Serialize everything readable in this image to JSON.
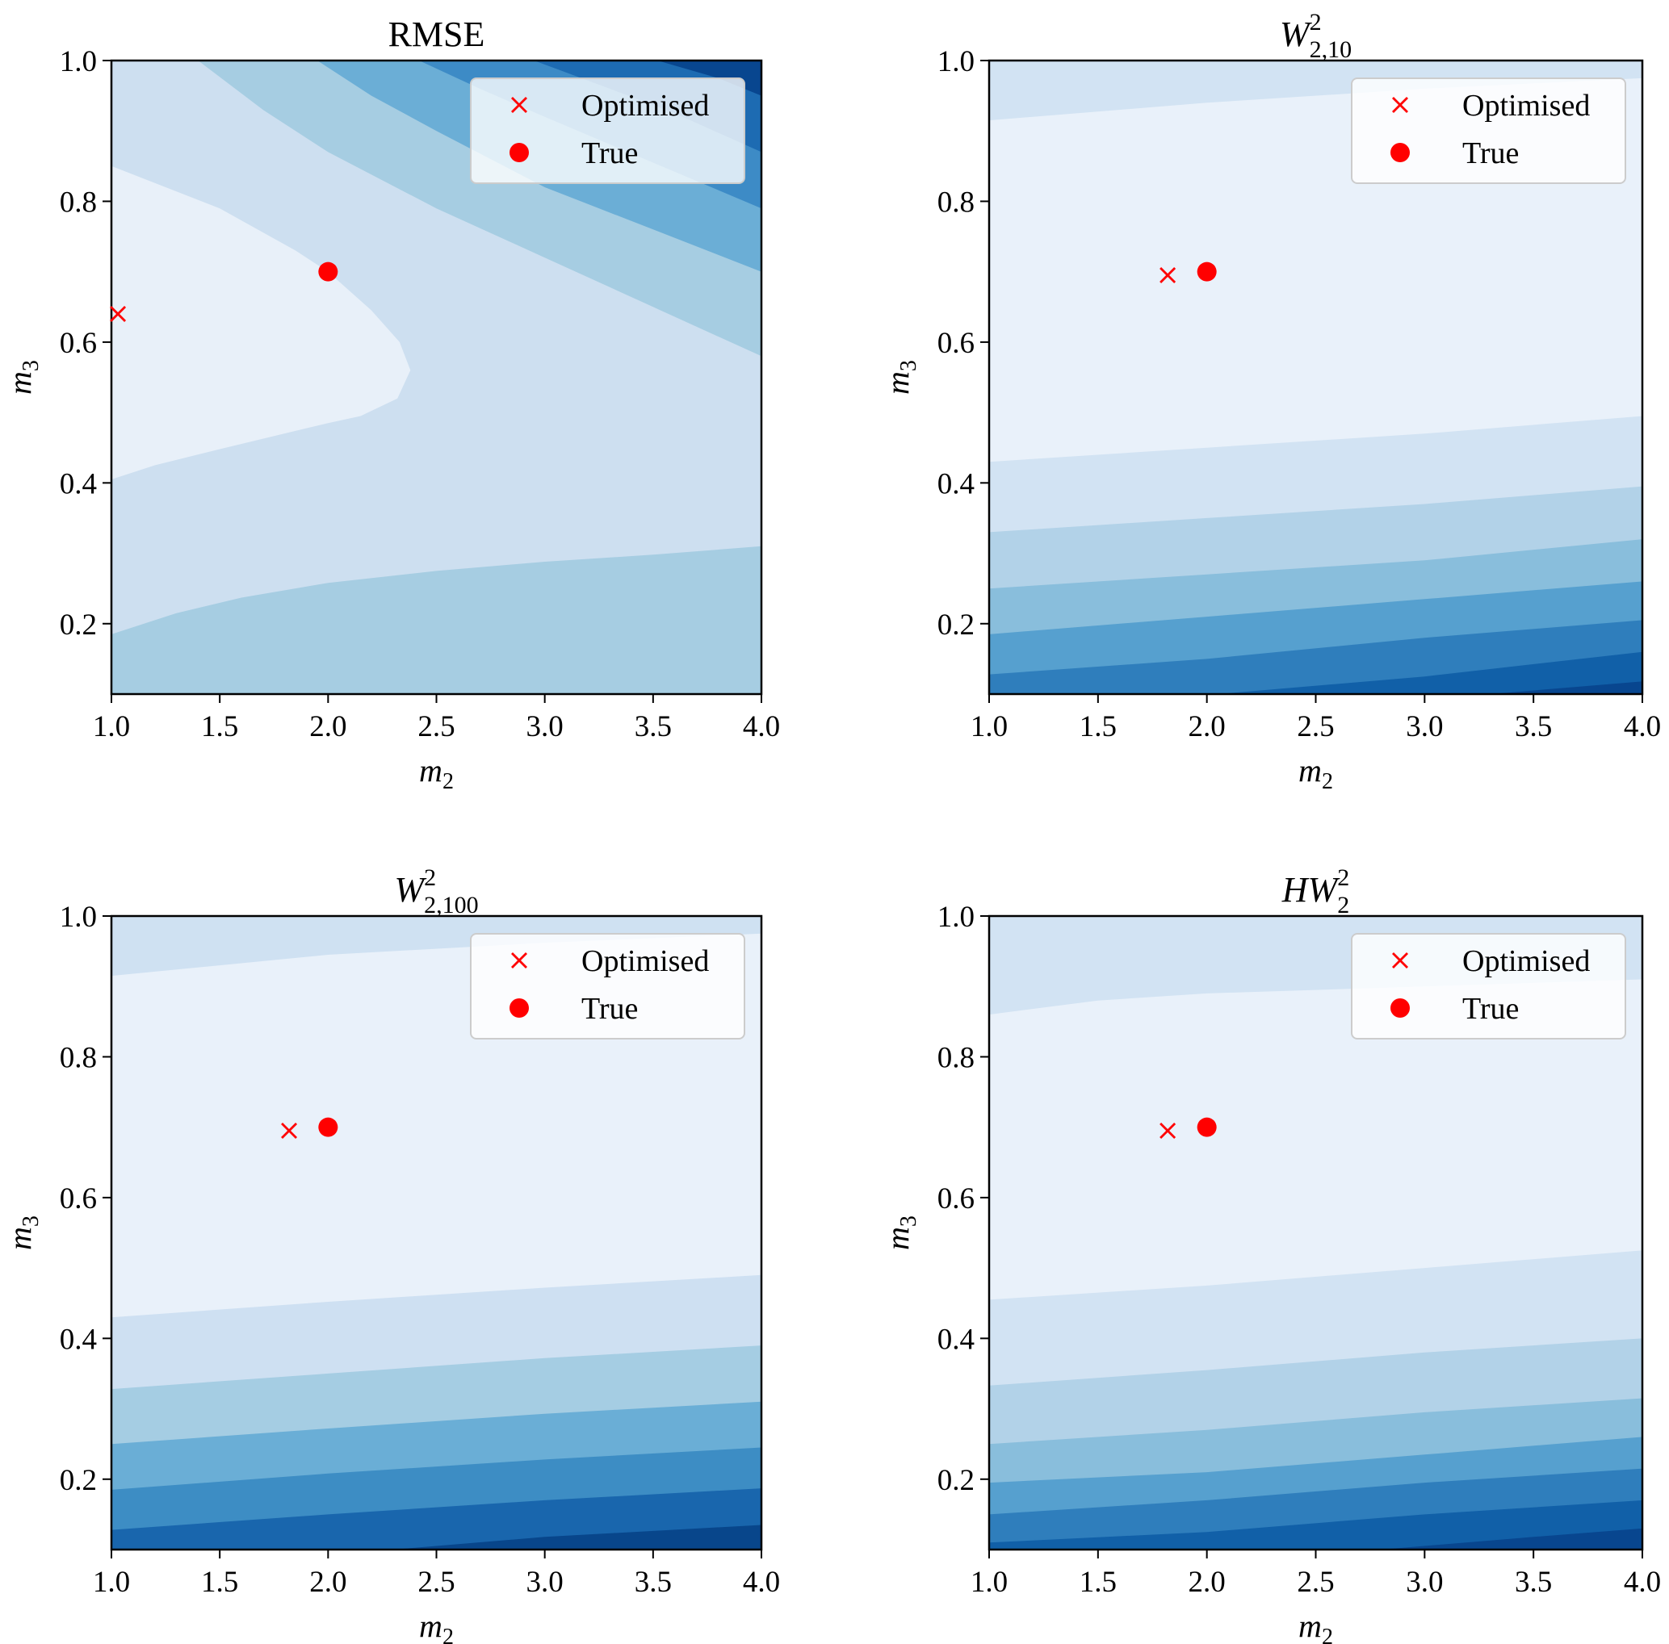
{
  "chart_data": [
    {
      "type": "contour",
      "title": {
        "base": "RMSE",
        "sup": "",
        "sub": ""
      },
      "xlabel": {
        "base": "m",
        "sub": "2"
      },
      "ylabel": {
        "base": "m",
        "sub": "3"
      },
      "xlim": [
        1.0,
        4.0
      ],
      "ylim": [
        0.1,
        1.0
      ],
      "xticks": [
        1.0,
        1.5,
        2.0,
        2.5,
        3.0,
        3.5,
        4.0
      ],
      "xtick_labels": [
        "1.0",
        "1.5",
        "2.0",
        "2.5",
        "3.0",
        "3.5",
        "4.0"
      ],
      "yticks": [
        0.2,
        0.4,
        0.6,
        0.8,
        1.0
      ],
      "ytick_labels": [
        "0.2",
        "0.4",
        "0.6",
        "0.8",
        "1.0"
      ],
      "legend": {
        "placement": "top-right",
        "entries": [
          "Optimised",
          "True"
        ],
        "alpha": 0.8
      },
      "points": {
        "optimised": [
          1.03,
          0.64
        ],
        "true": [
          2.0,
          0.7
        ]
      },
      "marker_color": "#ff0000",
      "background": "#cddff0",
      "bands": [
        {
          "color": "#e8f0f9",
          "polygon": [
            [
              1,
              0.85
            ],
            [
              1.5,
              0.79
            ],
            [
              1.85,
              0.73
            ],
            [
              2.0,
              0.7
            ],
            [
              2.2,
              0.645
            ],
            [
              2.33,
              0.6
            ],
            [
              2.38,
              0.56
            ],
            [
              2.32,
              0.52
            ],
            [
              2.15,
              0.495
            ],
            [
              2.0,
              0.485
            ],
            [
              1.5,
              0.448
            ],
            [
              1.2,
              0.425
            ],
            [
              1.0,
              0.405
            ]
          ]
        },
        {
          "color": "#a6cde2",
          "polygon": [
            [
              1,
              0.185
            ],
            [
              1.3,
              0.215
            ],
            [
              1.6,
              0.237
            ],
            [
              2,
              0.258
            ],
            [
              2.5,
              0.275
            ],
            [
              3,
              0.288
            ],
            [
              3.5,
              0.298
            ],
            [
              4,
              0.31
            ],
            [
              4,
              0.1
            ],
            [
              1,
              0.1
            ]
          ]
        },
        {
          "color": "#a6cde2",
          "polygon": [
            [
              1.4,
              1.0
            ],
            [
              1.7,
              0.93
            ],
            [
              2,
              0.87
            ],
            [
              2.5,
              0.79
            ],
            [
              3,
              0.72
            ],
            [
              3.5,
              0.65
            ],
            [
              4,
              0.58
            ],
            [
              4,
              1.0
            ]
          ]
        },
        {
          "color": "#6baed6",
          "polygon": [
            [
              1.95,
              1.0
            ],
            [
              2.2,
              0.95
            ],
            [
              2.5,
              0.9
            ],
            [
              3,
              0.82
            ],
            [
              3.5,
              0.76
            ],
            [
              4,
              0.7
            ],
            [
              4,
              1.0
            ]
          ]
        },
        {
          "color": "#3d8bc6",
          "polygon": [
            [
              2.42,
              1.0
            ],
            [
              2.7,
              0.96
            ],
            [
              3,
              0.92
            ],
            [
              3.5,
              0.855
            ],
            [
              4,
              0.79
            ],
            [
              4,
              1.0
            ]
          ]
        },
        {
          "color": "#1d6bb2",
          "polygon": [
            [
              2.95,
              1.0
            ],
            [
              3.3,
              0.96
            ],
            [
              3.6,
              0.925
            ],
            [
              4,
              0.87
            ],
            [
              4,
              1.0
            ]
          ]
        },
        {
          "color": "#08468f",
          "polygon": [
            [
              3.52,
              1.0
            ],
            [
              3.8,
              0.975
            ],
            [
              4,
              0.95
            ],
            [
              4,
              1.0
            ]
          ]
        }
      ]
    },
    {
      "type": "contour",
      "title": {
        "base": "W",
        "sup": "2",
        "sub": "2,10"
      },
      "xlabel": {
        "base": "m",
        "sub": "2"
      },
      "ylabel": {
        "base": "m",
        "sub": "3"
      },
      "xlim": [
        1.0,
        4.0
      ],
      "ylim": [
        0.1,
        1.0
      ],
      "xticks": [
        1.0,
        1.5,
        2.0,
        2.5,
        3.0,
        3.5,
        4.0
      ],
      "xtick_labels": [
        "1.0",
        "1.5",
        "2.0",
        "2.5",
        "3.0",
        "3.5",
        "4.0"
      ],
      "yticks": [
        0.2,
        0.4,
        0.6,
        0.8,
        1.0
      ],
      "ytick_labels": [
        "0.2",
        "0.4",
        "0.6",
        "0.8",
        "1.0"
      ],
      "legend": {
        "placement": "top-right",
        "entries": [
          "Optimised",
          "True"
        ],
        "alpha": 0.8
      },
      "points": {
        "optimised": [
          1.82,
          0.695
        ],
        "true": [
          2.0,
          0.7
        ]
      },
      "marker_color": "#ff0000",
      "background": "#e9f1fa",
      "bands": [
        {
          "color": "#d2e3f3",
          "polygon": [
            [
              1,
              0.915
            ],
            [
              2,
              0.94
            ],
            [
              3,
              0.96
            ],
            [
              4,
              0.975
            ],
            [
              4,
              1.0
            ],
            [
              1,
              1.0
            ]
          ]
        },
        {
          "color": "#d2e3f3",
          "polygon": [
            [
              1,
              0.43
            ],
            [
              2,
              0.45
            ],
            [
              3,
              0.47
            ],
            [
              4,
              0.495
            ],
            [
              4,
              0.1
            ],
            [
              1,
              0.1
            ]
          ]
        },
        {
          "color": "#b2d2e8",
          "polygon": [
            [
              1,
              0.33
            ],
            [
              2,
              0.35
            ],
            [
              3,
              0.37
            ],
            [
              4,
              0.395
            ],
            [
              4,
              0.1
            ],
            [
              1,
              0.1
            ]
          ]
        },
        {
          "color": "#89bedc",
          "polygon": [
            [
              1,
              0.25
            ],
            [
              2,
              0.27
            ],
            [
              3,
              0.29
            ],
            [
              4,
              0.32
            ],
            [
              4,
              0.1
            ],
            [
              1,
              0.1
            ]
          ]
        },
        {
          "color": "#56a0cf",
          "polygon": [
            [
              1,
              0.185
            ],
            [
              2,
              0.21
            ],
            [
              3,
              0.235
            ],
            [
              4,
              0.26
            ],
            [
              4,
              0.1
            ],
            [
              1,
              0.1
            ]
          ]
        },
        {
          "color": "#2f7ebc",
          "polygon": [
            [
              1,
              0.128
            ],
            [
              2,
              0.15
            ],
            [
              3,
              0.18
            ],
            [
              4,
              0.205
            ],
            [
              4,
              0.1
            ],
            [
              1,
              0.1
            ]
          ]
        },
        {
          "color": "#1160a8",
          "polygon": [
            [
              2.05,
              0.1
            ],
            [
              3,
              0.125
            ],
            [
              4,
              0.16
            ],
            [
              4,
              0.1
            ]
          ]
        },
        {
          "color": "#08468f",
          "polygon": [
            [
              3.3,
              0.1
            ],
            [
              4,
              0.118
            ],
            [
              4,
              0.1
            ]
          ]
        }
      ]
    },
    {
      "type": "contour",
      "title": {
        "base": "W",
        "sup": "2",
        "sub": "2,100"
      },
      "xlabel": {
        "base": "m",
        "sub": "2"
      },
      "ylabel": {
        "base": "m",
        "sub": "3"
      },
      "xlim": [
        1.0,
        4.0
      ],
      "ylim": [
        0.1,
        1.0
      ],
      "xticks": [
        1.0,
        1.5,
        2.0,
        2.5,
        3.0,
        3.5,
        4.0
      ],
      "xtick_labels": [
        "1.0",
        "1.5",
        "2.0",
        "2.5",
        "3.0",
        "3.5",
        "4.0"
      ],
      "yticks": [
        0.2,
        0.4,
        0.6,
        0.8,
        1.0
      ],
      "ytick_labels": [
        "0.2",
        "0.4",
        "0.6",
        "0.8",
        "1.0"
      ],
      "legend": {
        "placement": "top-right",
        "entries": [
          "Optimised",
          "True"
        ],
        "alpha": 0.8
      },
      "points": {
        "optimised": [
          1.82,
          0.695
        ],
        "true": [
          2.0,
          0.7
        ]
      },
      "marker_color": "#ff0000",
      "background": "#e9f1fa",
      "bands": [
        {
          "color": "#cfe1f2",
          "polygon": [
            [
              1,
              0.915
            ],
            [
              2,
              0.945
            ],
            [
              3,
              0.962
            ],
            [
              4,
              0.975
            ],
            [
              4,
              1.0
            ],
            [
              1,
              1.0
            ]
          ]
        },
        {
          "color": "#cee0f2",
          "polygon": [
            [
              1,
              0.43
            ],
            [
              2,
              0.452
            ],
            [
              3,
              0.472
            ],
            [
              4,
              0.49
            ],
            [
              4,
              0.1
            ],
            [
              1,
              0.1
            ]
          ]
        },
        {
          "color": "#a5cde3",
          "polygon": [
            [
              1,
              0.328
            ],
            [
              2,
              0.35
            ],
            [
              3,
              0.372
            ],
            [
              4,
              0.39
            ],
            [
              4,
              0.1
            ],
            [
              1,
              0.1
            ]
          ]
        },
        {
          "color": "#6aaed6",
          "polygon": [
            [
              1,
              0.25
            ],
            [
              2,
              0.272
            ],
            [
              3,
              0.293
            ],
            [
              4,
              0.31
            ],
            [
              4,
              0.1
            ],
            [
              1,
              0.1
            ]
          ]
        },
        {
          "color": "#3d8dc4",
          "polygon": [
            [
              1,
              0.185
            ],
            [
              2,
              0.208
            ],
            [
              3,
              0.228
            ],
            [
              4,
              0.245
            ],
            [
              4,
              0.1
            ],
            [
              1,
              0.1
            ]
          ]
        },
        {
          "color": "#1966ad",
          "polygon": [
            [
              1,
              0.128
            ],
            [
              2,
              0.15
            ],
            [
              3,
              0.17
            ],
            [
              4,
              0.187
            ],
            [
              4,
              0.1
            ],
            [
              1,
              0.1
            ]
          ]
        },
        {
          "color": "#08468b",
          "polygon": [
            [
              2.3,
              0.1
            ],
            [
              3,
              0.118
            ],
            [
              4,
              0.135
            ],
            [
              4,
              0.1
            ]
          ]
        }
      ]
    },
    {
      "type": "contour",
      "title": {
        "base": "HW",
        "sup": "2",
        "sub": "2"
      },
      "xlabel": {
        "base": "m",
        "sub": "2"
      },
      "ylabel": {
        "base": "m",
        "sub": "3"
      },
      "xlim": [
        1.0,
        4.0
      ],
      "ylim": [
        0.1,
        1.0
      ],
      "xticks": [
        1.0,
        1.5,
        2.0,
        2.5,
        3.0,
        3.5,
        4.0
      ],
      "xtick_labels": [
        "1.0",
        "1.5",
        "2.0",
        "2.5",
        "3.0",
        "3.5",
        "4.0"
      ],
      "yticks": [
        0.2,
        0.4,
        0.6,
        0.8,
        1.0
      ],
      "ytick_labels": [
        "0.2",
        "0.4",
        "0.6",
        "0.8",
        "1.0"
      ],
      "legend": {
        "placement": "top-right",
        "entries": [
          "Optimised",
          "True"
        ],
        "alpha": 0.8
      },
      "points": {
        "optimised": [
          1.82,
          0.695
        ],
        "true": [
          2.0,
          0.7
        ]
      },
      "marker_color": "#ff0000",
      "background": "#e9f1fa",
      "bands": [
        {
          "color": "#d2e3f3",
          "polygon": [
            [
              1,
              0.86
            ],
            [
              1.5,
              0.88
            ],
            [
              2,
              0.89
            ],
            [
              3,
              0.9
            ],
            [
              4,
              0.91
            ],
            [
              4,
              1.0
            ],
            [
              1,
              1.0
            ]
          ]
        },
        {
          "color": "#d2e3f3",
          "polygon": [
            [
              1,
              0.455
            ],
            [
              2,
              0.475
            ],
            [
              3,
              0.5
            ],
            [
              4,
              0.525
            ],
            [
              4,
              0.1
            ],
            [
              1,
              0.1
            ]
          ]
        },
        {
          "color": "#b2d2e8",
          "polygon": [
            [
              1,
              0.333
            ],
            [
              2,
              0.355
            ],
            [
              3,
              0.38
            ],
            [
              4,
              0.4
            ],
            [
              4,
              0.1
            ],
            [
              1,
              0.1
            ]
          ]
        },
        {
          "color": "#89bedc",
          "polygon": [
            [
              1,
              0.25
            ],
            [
              2,
              0.27
            ],
            [
              3,
              0.295
            ],
            [
              4,
              0.315
            ],
            [
              4,
              0.1
            ],
            [
              1,
              0.1
            ]
          ]
        },
        {
          "color": "#56a0cf",
          "polygon": [
            [
              1,
              0.195
            ],
            [
              2,
              0.21
            ],
            [
              3,
              0.235
            ],
            [
              4,
              0.26
            ],
            [
              4,
              0.1
            ],
            [
              1,
              0.1
            ]
          ]
        },
        {
          "color": "#2f7ebc",
          "polygon": [
            [
              1,
              0.15
            ],
            [
              2,
              0.17
            ],
            [
              3,
              0.195
            ],
            [
              4,
              0.215
            ],
            [
              4,
              0.1
            ],
            [
              1,
              0.1
            ]
          ]
        },
        {
          "color": "#1160a8",
          "polygon": [
            [
              1,
              0.11
            ],
            [
              2,
              0.125
            ],
            [
              3,
              0.15
            ],
            [
              4,
              0.17
            ],
            [
              4,
              0.1
            ],
            [
              1,
              0.1
            ]
          ]
        },
        {
          "color": "#08468f",
          "polygon": [
            [
              2.8,
              0.1
            ],
            [
              3.5,
              0.118
            ],
            [
              4,
              0.13
            ],
            [
              4,
              0.1
            ]
          ]
        }
      ]
    }
  ]
}
